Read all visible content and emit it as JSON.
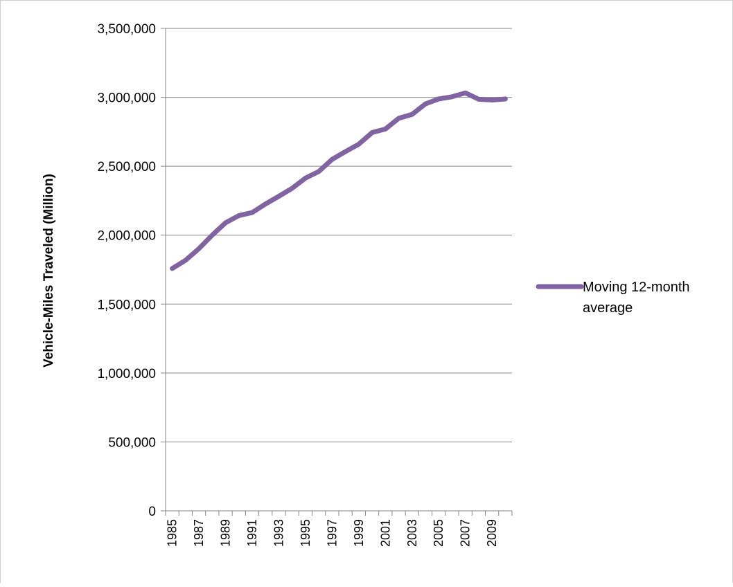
{
  "chart_data": {
    "type": "line",
    "title": "",
    "xlabel": "",
    "ylabel": "Vehicle-Miles Traveled (Million)",
    "ylim": [
      0,
      3500000
    ],
    "yticks": [
      0,
      500000,
      1000000,
      1500000,
      2000000,
      2500000,
      3000000,
      3500000
    ],
    "ytick_labels": [
      "0",
      "500,000",
      "1,000,000",
      "1,500,000",
      "2,000,000",
      "2,500,000",
      "3,000,000",
      "3,500,000"
    ],
    "x": [
      1985,
      1986,
      1987,
      1988,
      1989,
      1990,
      1991,
      1992,
      1993,
      1994,
      1995,
      1996,
      1997,
      1998,
      1999,
      2000,
      2001,
      2002,
      2003,
      2004,
      2005,
      2006,
      2007,
      2008,
      2009,
      2010
    ],
    "xtick_labels": [
      "1985",
      "1987",
      "1989",
      "1991",
      "1993",
      "1995",
      "1997",
      "1999",
      "2001",
      "2003",
      "2005",
      "2007",
      "2009"
    ],
    "grid": "horizontal",
    "legend_position": "right",
    "series": [
      {
        "name": "Moving 12-month average",
        "color": "#8064a2",
        "values": [
          1758000,
          1818000,
          1902000,
          2000000,
          2090000,
          2142000,
          2164000,
          2226000,
          2282000,
          2340000,
          2414000,
          2462000,
          2550000,
          2606000,
          2660000,
          2744000,
          2770000,
          2848000,
          2876000,
          2952000,
          2988000,
          3004000,
          3032000,
          2986000,
          2980000,
          2988000
        ]
      }
    ]
  }
}
